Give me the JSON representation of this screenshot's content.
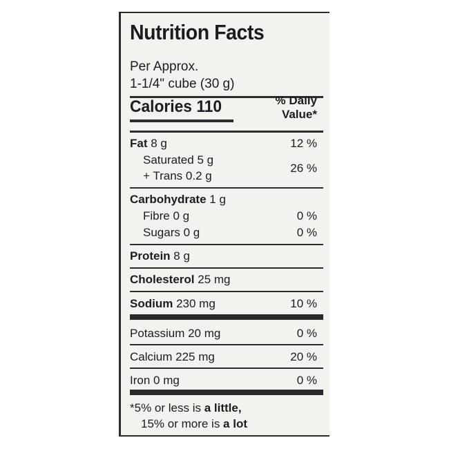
{
  "title": "Nutrition Facts",
  "serving": {
    "line1": "Per Approx.",
    "line2": "1-1/4\" cube (30 g)"
  },
  "calories": {
    "label": "Calories",
    "value": "110"
  },
  "dv_header": {
    "line1": "% Daily",
    "line2": "Value*"
  },
  "rows": {
    "fat": {
      "label": "Fat",
      "amount": "8 g",
      "pct": "12 %"
    },
    "saturated": {
      "label": "Saturated 5 g",
      "trans": "+ Trans 0.2 g",
      "pct": "26 %"
    },
    "carbohydrate": {
      "label": "Carbohydrate",
      "amount": "1 g"
    },
    "fibre": {
      "label": "Fibre 0 g",
      "pct": "0 %"
    },
    "sugars": {
      "label": "Sugars 0 g",
      "pct": "0 %"
    },
    "protein": {
      "label": "Protein",
      "amount": "8 g"
    },
    "cholesterol": {
      "label": "Cholesterol",
      "amount": "25 mg"
    },
    "sodium": {
      "label": "Sodium",
      "amount": "230 mg",
      "pct": "10 %"
    },
    "potassium": {
      "label": "Potassium 20 mg",
      "pct": "0 %"
    },
    "calcium": {
      "label": "Calcium 225 mg",
      "pct": "20 %"
    },
    "iron": {
      "label": "Iron 0 mg",
      "pct": "0 %"
    }
  },
  "footnote": {
    "part1": "*5% or less is ",
    "little": "a little,",
    "part2": "15% or more is ",
    "lot": "a lot"
  }
}
